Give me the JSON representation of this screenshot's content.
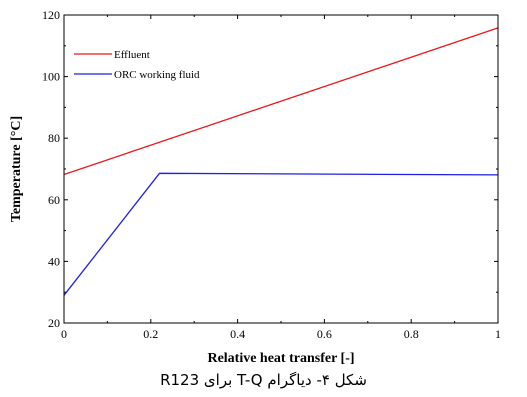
{
  "chart_data": {
    "type": "line",
    "xlabel": "Relative heat transfer [-]",
    "ylabel": "Temperature [°C]",
    "xlim": [
      0,
      1
    ],
    "ylim": [
      20,
      120
    ],
    "xticks": [
      0,
      0.2,
      0.4,
      0.6,
      0.8,
      1
    ],
    "xtick_labels": [
      "0",
      "0.2",
      "0.4",
      "0.6",
      "0.8",
      "1"
    ],
    "yticks": [
      20,
      40,
      60,
      80,
      100,
      120
    ],
    "ytick_labels": [
      "20",
      "40",
      "60",
      "80",
      "100",
      "120"
    ],
    "grid": false,
    "legend_position": "top-left",
    "series": [
      {
        "name": "Effluent",
        "color": "#e8191c",
        "x": [
          0,
          1
        ],
        "y": [
          68.2,
          115.8
        ]
      },
      {
        "name": "ORC working fluid",
        "color": "#1f1fe8",
        "x": [
          0,
          0.22,
          1
        ],
        "y": [
          29,
          68.6,
          68.1
        ]
      }
    ]
  },
  "caption": "شکل ۴- دیاگرام T-Q برای R123"
}
